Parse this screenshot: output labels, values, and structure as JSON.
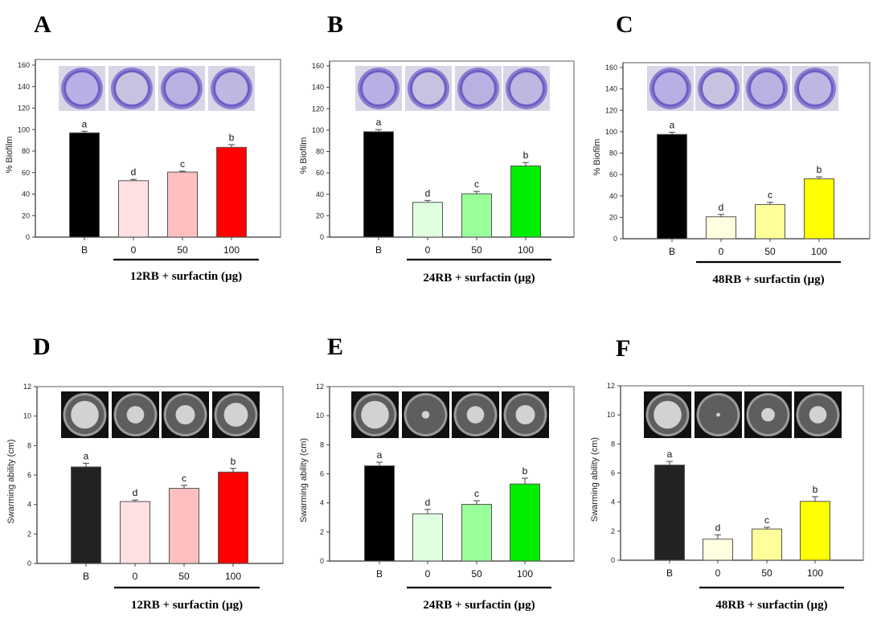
{
  "figure": {
    "panels": [
      "A",
      "B",
      "C",
      "D",
      "E",
      "F"
    ]
  },
  "chart_data": [
    {
      "panel": "A",
      "type": "bar",
      "title": "",
      "ylabel": "% Biofilm",
      "xlabel": "12RB + surfactin (µg)",
      "categories": [
        "B",
        "0",
        "50",
        "100"
      ],
      "values": [
        97,
        52.5,
        60.5,
        83.5
      ],
      "errors": [
        1.5,
        1.2,
        0.8,
        2.5
      ],
      "significance": [
        "a",
        "d",
        "c",
        "b"
      ],
      "colors": [
        "#000000",
        "#ffe0e3",
        "#ffbfc0",
        "#ff0000"
      ],
      "ylim": [
        0,
        160
      ],
      "yticks": [
        0,
        20,
        40,
        60,
        80,
        100,
        120,
        140,
        160
      ],
      "inset_images": [
        "crystal-violet-well-B",
        "crystal-violet-well-0",
        "crystal-violet-well-50",
        "crystal-violet-well-100"
      ],
      "grid": false
    },
    {
      "panel": "B",
      "type": "bar",
      "title": "",
      "ylabel": "% Biofilm",
      "xlabel": "24RB + surfactin (µg)",
      "categories": [
        "B",
        "0",
        "50",
        "100"
      ],
      "values": [
        98.5,
        32.5,
        40.5,
        66.5
      ],
      "errors": [
        2.0,
        1.8,
        2.2,
        3.2
      ],
      "significance": [
        "a",
        "d",
        "c",
        "b"
      ],
      "colors": [
        "#000000",
        "#e0ffe0",
        "#99ff99",
        "#00ee00"
      ],
      "ylim": [
        0,
        160
      ],
      "yticks": [
        0,
        20,
        40,
        60,
        80,
        100,
        120,
        140,
        160
      ],
      "inset_images": [
        "crystal-violet-well-B",
        "crystal-violet-well-0",
        "crystal-violet-well-50",
        "crystal-violet-well-100"
      ],
      "grid": false
    },
    {
      "panel": "C",
      "type": "bar",
      "title": "",
      "ylabel": "% Biofilm",
      "xlabel": "48RB + surfactin (µg)",
      "categories": [
        "B",
        "0",
        "50",
        "100"
      ],
      "values": [
        97.5,
        20.5,
        32,
        56
      ],
      "errors": [
        2.0,
        2.2,
        2.0,
        1.8
      ],
      "significance": [
        "a",
        "d",
        "c",
        "b"
      ],
      "colors": [
        "#000000",
        "#ffffe0",
        "#ffff99",
        "#ffff00"
      ],
      "ylim": [
        0,
        160
      ],
      "yticks": [
        0,
        20,
        40,
        60,
        80,
        100,
        120,
        140,
        160
      ],
      "inset_images": [
        "crystal-violet-well-B",
        "crystal-violet-well-0",
        "crystal-violet-well-50",
        "crystal-violet-well-100"
      ],
      "grid": false
    },
    {
      "panel": "D",
      "type": "bar",
      "title": "",
      "ylabel": "Swarming ability (cm)",
      "xlabel": "12RB + surfactin (µg)",
      "categories": [
        "B",
        "0",
        "50",
        "100"
      ],
      "values": [
        6.55,
        4.2,
        5.1,
        6.2
      ],
      "errors": [
        0.25,
        0.1,
        0.2,
        0.25
      ],
      "significance": [
        "a",
        "d",
        "c",
        "b"
      ],
      "colors": [
        "#222222",
        "#ffe0e3",
        "#ffbfc0",
        "#ff0000"
      ],
      "ylim": [
        0,
        12
      ],
      "yticks": [
        0,
        2,
        4,
        6,
        8,
        10,
        12
      ],
      "inset_images": [
        "swarm-plate-B",
        "swarm-plate-0",
        "swarm-plate-50",
        "swarm-plate-100"
      ],
      "grid": false
    },
    {
      "panel": "E",
      "type": "bar",
      "title": "",
      "ylabel": "Swarming ability (cm)",
      "xlabel": "24RB + surfactin (µg)",
      "categories": [
        "B",
        "0",
        "50",
        "100"
      ],
      "values": [
        6.55,
        3.25,
        3.9,
        5.3
      ],
      "errors": [
        0.25,
        0.3,
        0.25,
        0.4
      ],
      "significance": [
        "a",
        "d",
        "c",
        "b"
      ],
      "colors": [
        "#000000",
        "#e0ffe0",
        "#99ff99",
        "#00ee00"
      ],
      "ylim": [
        0,
        12
      ],
      "yticks": [
        0,
        2,
        4,
        6,
        8,
        10,
        12
      ],
      "inset_images": [
        "swarm-plate-B",
        "swarm-plate-0",
        "swarm-plate-50",
        "swarm-plate-100"
      ],
      "grid": false
    },
    {
      "panel": "F",
      "type": "bar",
      "title": "",
      "ylabel": "Swarming ability (cm)",
      "xlabel": "48RB + surfactin (µg)",
      "categories": [
        "B",
        "0",
        "50",
        "100"
      ],
      "values": [
        6.55,
        1.45,
        2.15,
        4.05
      ],
      "errors": [
        0.25,
        0.3,
        0.12,
        0.32
      ],
      "significance": [
        "a",
        "d",
        "c",
        "b"
      ],
      "colors": [
        "#222222",
        "#ffffe0",
        "#ffff99",
        "#ffff00"
      ],
      "ylim": [
        0,
        12
      ],
      "yticks": [
        0,
        2,
        4,
        6,
        8,
        10,
        12
      ],
      "inset_images": [
        "swarm-plate-B",
        "swarm-plate-0",
        "swarm-plate-50",
        "swarm-plate-100"
      ],
      "grid": false
    }
  ]
}
